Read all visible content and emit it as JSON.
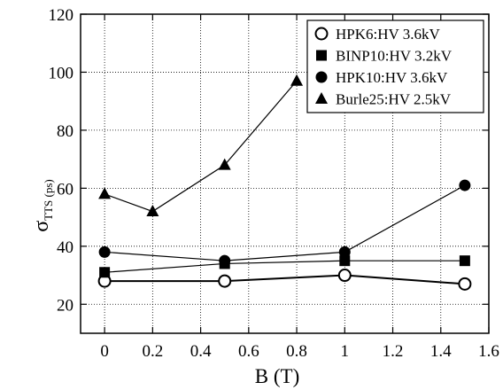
{
  "chart_data": {
    "type": "line",
    "title": "",
    "xlabel": "B (T)",
    "ylabel_main": "σ",
    "ylabel_sub": "TTS (ps)",
    "xlim": [
      -0.1,
      1.6
    ],
    "ylim": [
      10,
      120
    ],
    "xticks": [
      0,
      0.2,
      0.4,
      0.6,
      0.8,
      1,
      1.2,
      1.4,
      1.6
    ],
    "xtick_labels": [
      "0",
      "0.2",
      "0.4",
      "0.6",
      "0.8",
      "1",
      "1.2",
      "1.4",
      "1.6"
    ],
    "yticks": [
      20,
      40,
      60,
      80,
      100,
      120
    ],
    "ytick_labels": [
      "20",
      "40",
      "60",
      "80",
      "100",
      "120"
    ],
    "grid": true,
    "grid_style": "dotted",
    "legend_position": "top-right",
    "series": [
      {
        "name": "HPK6:HV 3.6kV",
        "marker": "open-circle",
        "x": [
          0,
          0.5,
          1,
          1.5
        ],
        "y": [
          28,
          28,
          30,
          27
        ]
      },
      {
        "name": "BINP10:HV 3.2kV",
        "marker": "filled-square",
        "x": [
          0,
          0.5,
          1,
          1.5
        ],
        "y": [
          31,
          34,
          35,
          35
        ]
      },
      {
        "name": "HPK10:HV 3.6kV",
        "marker": "filled-circle",
        "x": [
          0,
          0.5,
          1,
          1.5
        ],
        "y": [
          38,
          35,
          38,
          61
        ]
      },
      {
        "name": "Burle25:HV 2.5kV",
        "marker": "filled-triangle",
        "x": [
          0,
          0.2,
          0.5,
          0.8
        ],
        "y": [
          58,
          52,
          68,
          97
        ]
      }
    ]
  }
}
